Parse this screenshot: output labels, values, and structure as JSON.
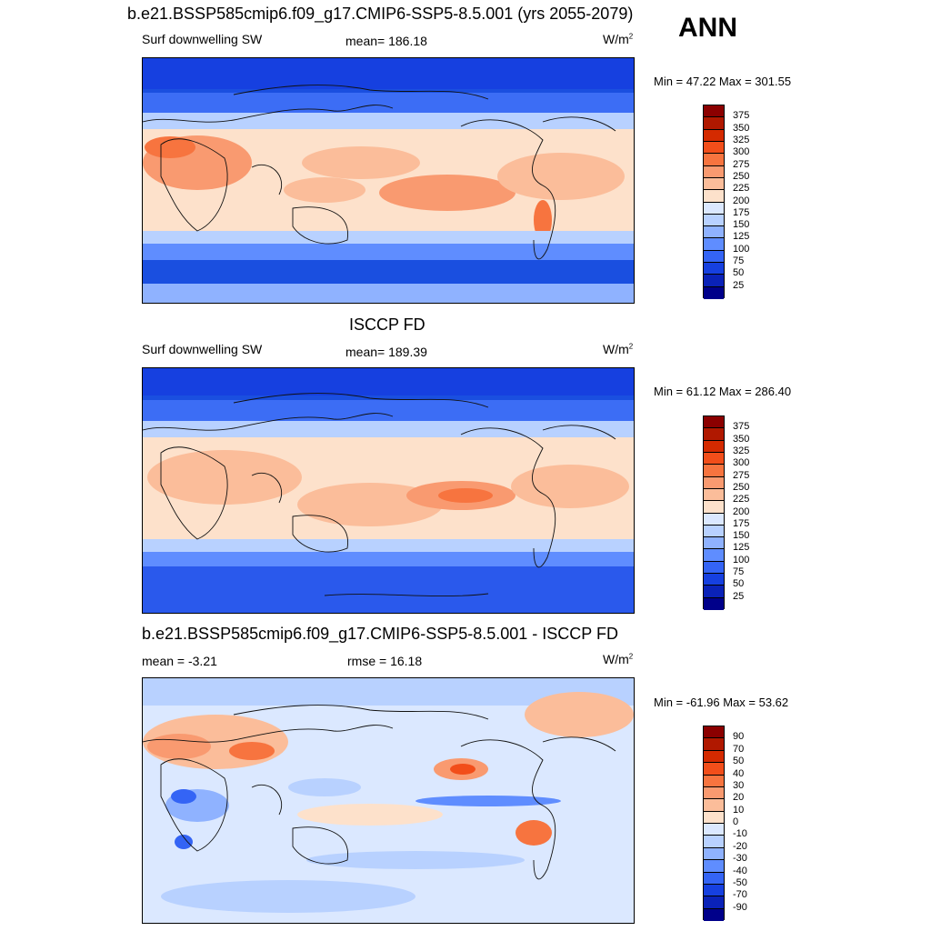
{
  "season": "ANN",
  "panels": [
    {
      "title": "b.e21.BSSP585cmip6.f09_g17.CMIP6-SSP5-8.5.001 (yrs 2055-2079)",
      "left_label": "Surf downwelling SW",
      "center_label": "mean= 186.18",
      "units_base": "W/m",
      "units_sup": "2",
      "minmax": "Min =  47.22 Max = 301.55",
      "colorbar": {
        "ticks": [
          "375",
          "350",
          "325",
          "300",
          "275",
          "250",
          "225",
          "200",
          "175",
          "150",
          "125",
          "100",
          "75",
          "50",
          "25"
        ],
        "colors": [
          "#8b0000",
          "#b01800",
          "#d42a00",
          "#f24e1a",
          "#f7743f",
          "#f99a70",
          "#fbbd9a",
          "#fde1cb",
          "#dbe8ff",
          "#b8d1ff",
          "#8fb2ff",
          "#5f8dff",
          "#3464f5",
          "#1640e0",
          "#0a22b8",
          "#00008a"
        ]
      }
    },
    {
      "title": "ISCCP FD",
      "left_label": "Surf downwelling SW",
      "center_label": "mean= 189.39",
      "units_base": "W/m",
      "units_sup": "2",
      "minmax": "Min =  61.12 Max = 286.40",
      "colorbar": {
        "ticks": [
          "375",
          "350",
          "325",
          "300",
          "275",
          "250",
          "225",
          "200",
          "175",
          "150",
          "125",
          "100",
          "75",
          "50",
          "25"
        ],
        "colors": [
          "#8b0000",
          "#b01800",
          "#d42a00",
          "#f24e1a",
          "#f7743f",
          "#f99a70",
          "#fbbd9a",
          "#fde1cb",
          "#dbe8ff",
          "#b8d1ff",
          "#8fb2ff",
          "#5f8dff",
          "#3464f5",
          "#1640e0",
          "#0a22b8",
          "#00008a"
        ]
      }
    },
    {
      "title": "b.e21.BSSP585cmip6.f09_g17.CMIP6-SSP5-8.5.001 - ISCCP FD",
      "left_label": "mean =  -3.21",
      "center_label": "rmse =  16.18",
      "units_base": "W/m",
      "units_sup": "2",
      "minmax": "Min = -61.96 Max =  53.62",
      "colorbar": {
        "ticks": [
          "90",
          "70",
          "50",
          "40",
          "30",
          "20",
          "10",
          "0",
          "-10",
          "-20",
          "-30",
          "-40",
          "-50",
          "-70",
          "-90"
        ],
        "colors": [
          "#8b0000",
          "#b01800",
          "#d42a00",
          "#f24e1a",
          "#f7743f",
          "#f99a70",
          "#fbbd9a",
          "#fde1cb",
          "#dbe8ff",
          "#b8d1ff",
          "#8fb2ff",
          "#5f8dff",
          "#3464f5",
          "#1640e0",
          "#0a22b8",
          "#00008a"
        ]
      }
    }
  ],
  "chart_data": [
    {
      "type": "heatmap",
      "title": "b.e21.BSSP585cmip6.f09_g17.CMIP6-SSP5-8.5.001 (yrs 2055-2079)",
      "variable": "Surf downwelling SW",
      "units": "W/m2",
      "mean": 186.18,
      "min": 47.22,
      "max": 301.55,
      "levels": [
        25,
        50,
        75,
        100,
        125,
        150,
        175,
        200,
        225,
        250,
        275,
        300,
        325,
        350,
        375
      ]
    },
    {
      "type": "heatmap",
      "title": "ISCCP FD",
      "variable": "Surf downwelling SW",
      "units": "W/m2",
      "mean": 189.39,
      "min": 61.12,
      "max": 286.4,
      "levels": [
        25,
        50,
        75,
        100,
        125,
        150,
        175,
        200,
        225,
        250,
        275,
        300,
        325,
        350,
        375
      ]
    },
    {
      "type": "heatmap",
      "title": "b.e21.BSSP585cmip6.f09_g17.CMIP6-SSP5-8.5.001 - ISCCP FD",
      "units": "W/m2",
      "mean": -3.21,
      "rmse": 16.18,
      "min": -61.96,
      "max": 53.62,
      "levels": [
        -90,
        -70,
        -50,
        -40,
        -30,
        -20,
        -10,
        0,
        10,
        20,
        30,
        40,
        50,
        70,
        90
      ]
    }
  ]
}
